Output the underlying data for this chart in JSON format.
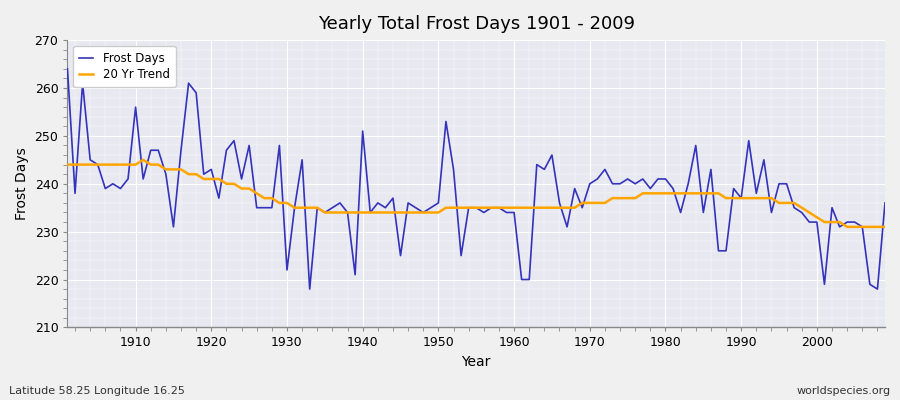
{
  "title": "Yearly Total Frost Days 1901 - 2009",
  "xlabel": "Year",
  "ylabel": "Frost Days",
  "footnote_left": "Latitude 58.25 Longitude 16.25",
  "footnote_right": "worldspecies.org",
  "ylim": [
    210,
    270
  ],
  "yticks": [
    210,
    220,
    230,
    240,
    250,
    260,
    270
  ],
  "fig_bg": "#f0f0f0",
  "plot_bg": "#e8e8f0",
  "grid_color": "#ffffff",
  "line_color": "#3333bb",
  "trend_color": "#ffa500",
  "years": [
    1901,
    1902,
    1903,
    1904,
    1905,
    1906,
    1907,
    1908,
    1909,
    1910,
    1911,
    1912,
    1913,
    1914,
    1915,
    1916,
    1917,
    1918,
    1919,
    1920,
    1921,
    1922,
    1923,
    1924,
    1925,
    1926,
    1927,
    1928,
    1929,
    1930,
    1931,
    1932,
    1933,
    1934,
    1935,
    1936,
    1937,
    1938,
    1939,
    1940,
    1941,
    1942,
    1943,
    1944,
    1945,
    1946,
    1947,
    1948,
    1949,
    1950,
    1951,
    1952,
    1953,
    1954,
    1955,
    1956,
    1957,
    1958,
    1959,
    1960,
    1961,
    1962,
    1963,
    1964,
    1965,
    1966,
    1967,
    1968,
    1969,
    1970,
    1971,
    1972,
    1973,
    1974,
    1975,
    1976,
    1977,
    1978,
    1979,
    1980,
    1981,
    1982,
    1983,
    1984,
    1985,
    1986,
    1987,
    1988,
    1989,
    1990,
    1991,
    1992,
    1993,
    1994,
    1995,
    1996,
    1997,
    1998,
    1999,
    2000,
    2001,
    2002,
    2003,
    2004,
    2005,
    2006,
    2007,
    2008,
    2009
  ],
  "frost_days": [
    264,
    238,
    261,
    245,
    244,
    239,
    240,
    239,
    241,
    256,
    241,
    247,
    247,
    242,
    231,
    247,
    261,
    259,
    242,
    243,
    237,
    247,
    249,
    241,
    248,
    235,
    235,
    235,
    248,
    222,
    235,
    245,
    218,
    235,
    234,
    235,
    236,
    234,
    221,
    251,
    234,
    236,
    235,
    237,
    225,
    236,
    235,
    234,
    235,
    236,
    253,
    243,
    225,
    235,
    235,
    234,
    235,
    235,
    234,
    234,
    220,
    220,
    244,
    243,
    246,
    236,
    231,
    239,
    235,
    240,
    241,
    243,
    240,
    240,
    241,
    240,
    241,
    239,
    241,
    241,
    239,
    234,
    240,
    248,
    234,
    243,
    226,
    226,
    239,
    237,
    249,
    238,
    245,
    234,
    240,
    240,
    235,
    234,
    232,
    232,
    219,
    235,
    231,
    232,
    232,
    231,
    219,
    218,
    236
  ],
  "trend": [
    244,
    244,
    244,
    244,
    244,
    244,
    244,
    244,
    244,
    244,
    245,
    244,
    244,
    243,
    243,
    243,
    242,
    242,
    241,
    241,
    241,
    240,
    240,
    239,
    239,
    238,
    237,
    237,
    236,
    236,
    235,
    235,
    235,
    235,
    234,
    234,
    234,
    234,
    234,
    234,
    234,
    234,
    234,
    234,
    234,
    234,
    234,
    234,
    234,
    234,
    235,
    235,
    235,
    235,
    235,
    235,
    235,
    235,
    235,
    235,
    235,
    235,
    235,
    235,
    235,
    235,
    235,
    235,
    236,
    236,
    236,
    236,
    237,
    237,
    237,
    237,
    238,
    238,
    238,
    238,
    238,
    238,
    238,
    238,
    238,
    238,
    238,
    237,
    237,
    237,
    237,
    237,
    237,
    237,
    236,
    236,
    236,
    235,
    234,
    233,
    232,
    232,
    232,
    231,
    231,
    231,
    231,
    231,
    231
  ]
}
